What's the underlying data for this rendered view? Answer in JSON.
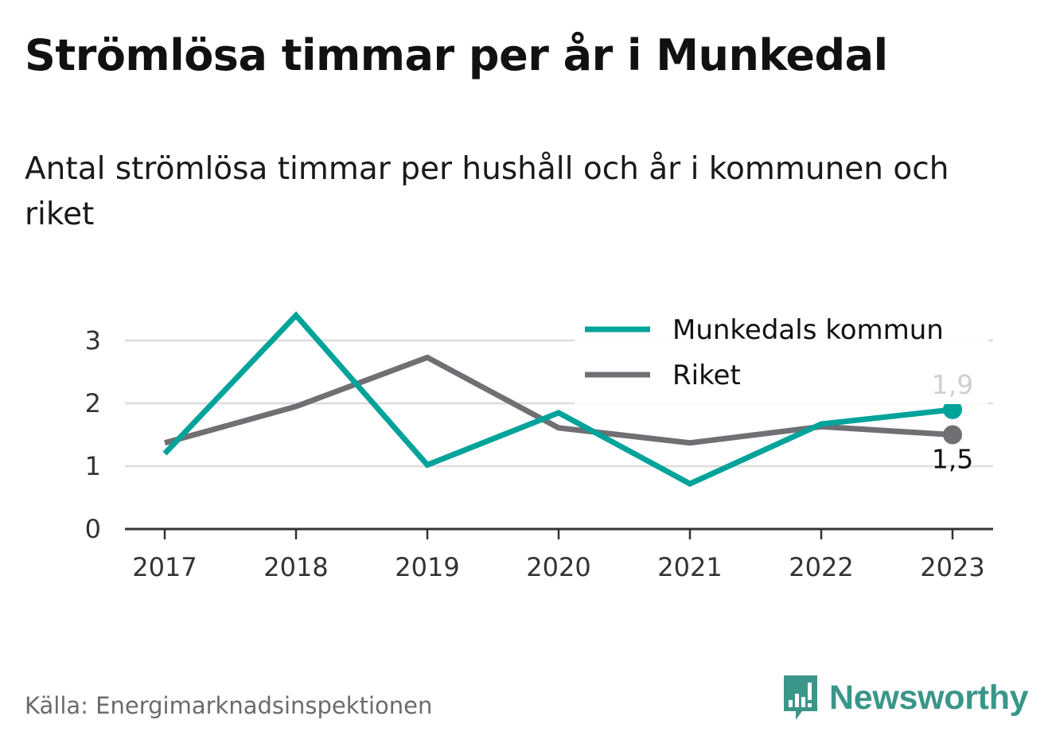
{
  "title": "Strömlösa timmar per år i Munkedal",
  "subtitle": "Antal strömlösa timmar per hushåll och år i kommunen och riket",
  "source": "Källa: Energimarknadsinspektionen",
  "logo": {
    "text": "Newsworthy",
    "icon": "newsworthy-bar-chart-icon",
    "color": "#3a9688"
  },
  "chart_data": {
    "type": "line",
    "title": "Strömlösa timmar per år i Munkedal",
    "x": [
      "2017",
      "2018",
      "2019",
      "2020",
      "2021",
      "2022",
      "2023"
    ],
    "ylim": [
      0,
      3.5
    ],
    "yticks": [
      "0",
      "1",
      "2",
      "3"
    ],
    "grid": true,
    "legend_position": "top-right",
    "series": [
      {
        "name": "Munkedals kommun",
        "color": "#00a39a",
        "values": [
          1.2,
          3.4,
          1.02,
          1.85,
          0.72,
          1.67,
          1.9
        ],
        "end_label": "1,9"
      },
      {
        "name": "Riket",
        "color": "#707074",
        "values": [
          1.37,
          1.95,
          2.73,
          1.61,
          1.37,
          1.63,
          1.5
        ],
        "end_label": "1,5"
      }
    ]
  }
}
